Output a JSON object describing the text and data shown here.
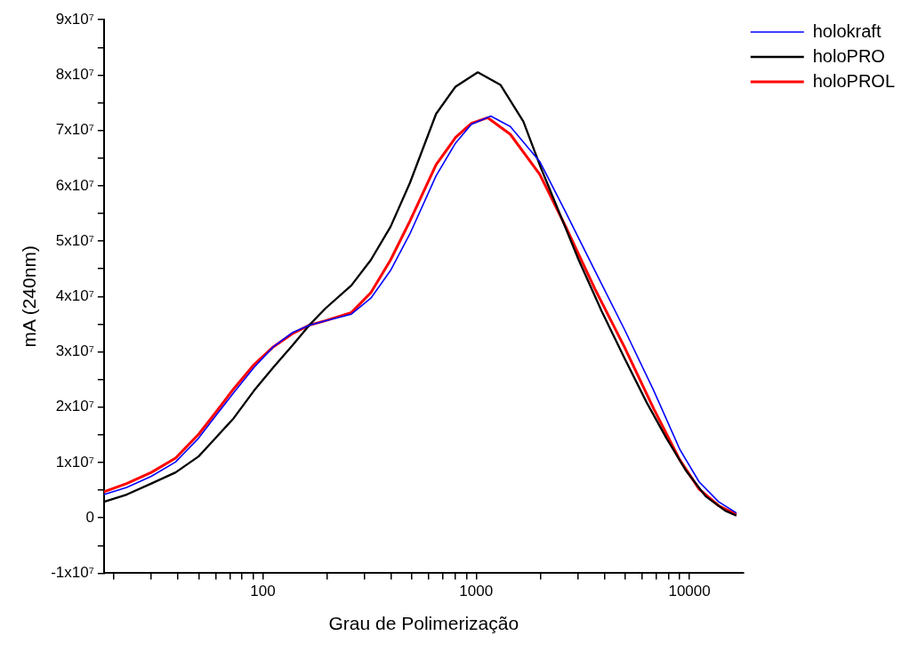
{
  "chart_data": {
    "type": "line",
    "xlabel": "Grau de Polimerização",
    "ylabel": "mA (240nm)",
    "log": "x",
    "grid": false,
    "legend": "top right",
    "xlim": [
      18,
      17900
    ],
    "ylim": [
      -10000000,
      90000000
    ],
    "xticks": [
      {
        "value": 20,
        "label": null
      },
      {
        "value": 30,
        "label": null
      },
      {
        "value": 40,
        "label": null
      },
      {
        "value": 50,
        "label": null
      },
      {
        "value": 60,
        "label": null
      },
      {
        "value": 70,
        "label": null
      },
      {
        "value": 80,
        "label": null
      },
      {
        "value": 90,
        "label": null
      },
      100,
      {
        "value": 200,
        "label": null
      },
      {
        "value": 300,
        "label": null
      },
      {
        "value": 400,
        "label": null
      },
      {
        "value": 500,
        "label": null
      },
      {
        "value": 600,
        "label": null
      },
      {
        "value": 700,
        "label": null
      },
      {
        "value": 800,
        "label": null
      },
      {
        "value": 900,
        "label": null
      },
      1000,
      {
        "value": 2000,
        "label": null
      },
      {
        "value": 3000,
        "label": null
      },
      {
        "value": 4000,
        "label": null
      },
      {
        "value": 5000,
        "label": null
      },
      {
        "value": 6000,
        "label": null
      },
      {
        "value": 7000,
        "label": null
      },
      {
        "value": 8000,
        "label": null
      },
      {
        "value": 9000,
        "label": null
      },
      10000
    ],
    "yticks": [
      {
        "value": -10000000,
        "label": "-1x10⁷"
      },
      {
        "value": -5000000,
        "label": null
      },
      {
        "value": 0,
        "label": "0"
      },
      {
        "value": 5000000,
        "label": null
      },
      {
        "value": 10000000,
        "label": "1x10⁷"
      },
      {
        "value": 15000000,
        "label": null
      },
      {
        "value": 20000000,
        "label": "2x10⁷"
      },
      {
        "value": 25000000,
        "label": null
      },
      {
        "value": 30000000,
        "label": "3x10⁷"
      },
      {
        "value": 35000000,
        "label": null
      },
      {
        "value": 40000000,
        "label": "4x10⁷"
      },
      {
        "value": 45000000,
        "label": null
      },
      {
        "value": 50000000,
        "label": "5x10⁷"
      },
      {
        "value": 55000000,
        "label": null
      },
      {
        "value": 60000000,
        "label": "6x10⁷"
      },
      {
        "value": 65000000,
        "label": null
      },
      {
        "value": 70000000,
        "label": "7x10⁷"
      },
      {
        "value": 75000000,
        "label": null
      },
      {
        "value": 80000000,
        "label": "8x10⁷"
      },
      {
        "value": 85000000,
        "label": null
      },
      {
        "value": 90000000,
        "label": "9x10⁷"
      }
    ],
    "series": [
      {
        "name": "holokraft",
        "color": "#0000ff",
        "x": [
          18,
          23,
          30,
          39,
          50,
          60,
          73,
          91,
          112,
          138,
          165,
          196,
          260,
          321,
          397,
          489,
          649,
          800,
          950,
          1171,
          1446,
          1985,
          2630,
          3600,
          4950,
          6800,
          9000,
          11100,
          13700,
          16600
        ],
        "values": [
          4200000,
          5500000,
          7500000,
          10100000,
          14400000,
          18400000,
          22600000,
          27200000,
          30900000,
          33500000,
          34800000,
          35600000,
          36800000,
          39700000,
          44700000,
          51300000,
          61800000,
          67700000,
          71100000,
          72600000,
          70700000,
          64400000,
          55200000,
          44700000,
          34100000,
          23000000,
          12400000,
          6500000,
          2900000,
          900000
        ]
      },
      {
        "name": "holoPRO",
        "color": "#000000",
        "x": [
          18,
          23,
          30,
          39,
          50,
          60,
          73,
          91,
          112,
          138,
          165,
          196,
          260,
          321,
          397,
          489,
          649,
          800,
          1018,
          1302,
          1665,
          1985,
          2450,
          3025,
          3870,
          4950,
          6330,
          7800,
          9640,
          11900,
          14700,
          16600
        ],
        "values": [
          2900000,
          4200000,
          6200000,
          8200000,
          11100000,
          14400000,
          18000000,
          23000000,
          27200000,
          31200000,
          34800000,
          37800000,
          42000000,
          46600000,
          52600000,
          60500000,
          73000000,
          77900000,
          80500000,
          78200000,
          71600000,
          63800000,
          55200000,
          46600000,
          37400000,
          28900000,
          20700000,
          14400000,
          8500000,
          3900000,
          1300000,
          400000
        ]
      },
      {
        "name": "holoPROL",
        "color": "#ff0000",
        "x": [
          18,
          23,
          30,
          39,
          50,
          60,
          73,
          91,
          112,
          138,
          165,
          196,
          260,
          321,
          397,
          489,
          649,
          800,
          950,
          1131,
          1446,
          1985,
          2630,
          3600,
          4950,
          6800,
          9000,
          11100,
          13700,
          16600
        ],
        "values": [
          4700000,
          6200000,
          8200000,
          10800000,
          15100000,
          19000000,
          23300000,
          27700000,
          30900000,
          33300000,
          34800000,
          35600000,
          37100000,
          40700000,
          46600000,
          53600000,
          63800000,
          68700000,
          71300000,
          72300000,
          69300000,
          62100000,
          52600000,
          41400000,
          30900000,
          19700000,
          10500000,
          5200000,
          2200000,
          600000
        ]
      }
    ]
  }
}
